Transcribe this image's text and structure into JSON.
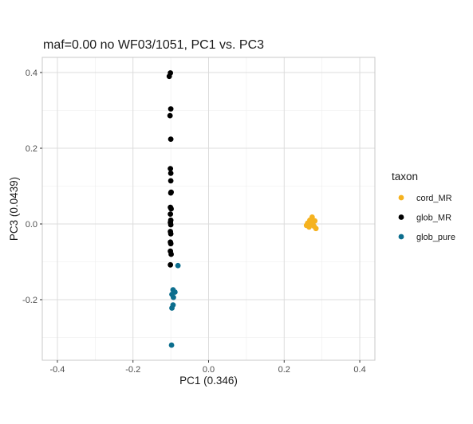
{
  "chart_data": {
    "type": "scatter",
    "title": "maf=0.00 no WF03/1051, PC1 vs. PC3",
    "xlabel": "PC1 (0.346)",
    "ylabel": "PC3 (0.0439)",
    "xlim": [
      -0.44,
      0.44
    ],
    "ylim": [
      -0.36,
      0.44
    ],
    "x_ticks": [
      -0.4,
      -0.2,
      0.0,
      0.2,
      0.4
    ],
    "x_tick_labels": [
      "-0.4",
      "-0.2",
      "0.0",
      "0.2",
      "0.4"
    ],
    "y_ticks": [
      -0.2,
      0.0,
      0.2,
      0.4
    ],
    "y_tick_labels": [
      "-0.2",
      "0.0",
      "0.2",
      "0.4"
    ],
    "grid": true,
    "legend": {
      "title": "taxon",
      "placement": "right"
    },
    "series": [
      {
        "name": "cord_MR",
        "color": "#F5B21F",
        "points": [
          [
            0.274,
            0.018
          ],
          [
            0.281,
            0.008
          ],
          [
            0.268,
            0.01
          ],
          [
            0.262,
            0.002
          ],
          [
            0.276,
            -0.002
          ],
          [
            0.266,
            -0.008
          ],
          [
            0.284,
            -0.012
          ],
          [
            0.272,
            0.004
          ],
          [
            0.279,
            -0.006
          ],
          [
            0.259,
            -0.004
          ]
        ]
      },
      {
        "name": "glob_MR",
        "color": "#000000",
        "points": [
          [
            -0.101,
            0.399
          ],
          [
            -0.104,
            0.39
          ],
          [
            -0.1,
            0.304
          ],
          [
            -0.102,
            0.286
          ],
          [
            -0.1,
            0.224
          ],
          [
            -0.101,
            0.146
          ],
          [
            -0.1,
            0.134
          ],
          [
            -0.1,
            0.114
          ],
          [
            -0.099,
            0.084
          ],
          [
            -0.1,
            0.082
          ],
          [
            -0.101,
            0.044
          ],
          [
            -0.099,
            0.04
          ],
          [
            -0.101,
            0.026
          ],
          [
            -0.1,
            0.01
          ],
          [
            -0.101,
            0.004
          ],
          [
            -0.1,
            -0.002
          ],
          [
            -0.101,
            -0.02
          ],
          [
            -0.1,
            -0.026
          ],
          [
            -0.101,
            -0.048
          ],
          [
            -0.1,
            -0.052
          ],
          [
            -0.101,
            -0.072
          ],
          [
            -0.099,
            -0.08
          ],
          [
            -0.101,
            -0.108
          ]
        ]
      },
      {
        "name": "glob_pure",
        "color": "#0C6E8E",
        "points": [
          [
            -0.081,
            -0.11
          ],
          [
            -0.094,
            -0.174
          ],
          [
            -0.089,
            -0.18
          ],
          [
            -0.097,
            -0.186
          ],
          [
            -0.093,
            -0.194
          ],
          [
            -0.094,
            -0.214
          ],
          [
            -0.097,
            -0.222
          ],
          [
            -0.098,
            -0.32
          ]
        ]
      }
    ]
  }
}
